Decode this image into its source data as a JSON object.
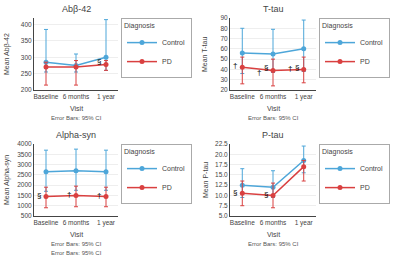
{
  "chart_data": [
    {
      "type": "line",
      "title": "Abβ-42",
      "xlabel": "Visit",
      "ylabel": "Mean Abβ-42",
      "categories": [
        "Baseline",
        "6 months",
        "1 year"
      ],
      "series": [
        {
          "name": "Control",
          "color": "#4da6d9",
          "marker": "circle",
          "values": [
            285,
            275,
            300
          ],
          "ci_low": [
            255,
            255,
            260
          ],
          "ci_high": [
            385,
            310,
            415
          ]
        },
        {
          "name": "PD",
          "color": "#d94040",
          "marker": "circle",
          "values": [
            270,
            270,
            278
          ],
          "ci_low": [
            215,
            215,
            260
          ],
          "ci_high": [
            285,
            290,
            290
          ]
        }
      ],
      "ylim": [
        200,
        420
      ],
      "yticks": [
        200,
        250,
        300,
        350,
        400
      ],
      "grid": true,
      "legend": "upper right",
      "legend_title": "Diagnosis",
      "annotations": [
        {
          "category": "1 year",
          "y": 288,
          "text": "§"
        }
      ],
      "footnotes": [
        "Error Bars: 95% CI"
      ]
    },
    {
      "type": "line",
      "title": "T-tau",
      "xlabel": "Visit",
      "ylabel": "Mean T-tau",
      "categories": [
        "Baseline",
        "6 months",
        "1 year"
      ],
      "series": [
        {
          "name": "Control",
          "color": "#4da6d9",
          "marker": "circle",
          "values": [
            56,
            55,
            60
          ],
          "ci_low": [
            36,
            37,
            38
          ],
          "ci_high": [
            80,
            79,
            88
          ]
        },
        {
          "name": "PD",
          "color": "#d94040",
          "marker": "circle",
          "values": [
            42,
            39,
            40
          ],
          "ci_low": [
            26,
            24,
            27
          ],
          "ci_high": [
            52,
            50,
            52
          ]
        }
      ],
      "ylim": [
        20,
        90
      ],
      "yticks": [
        20,
        30,
        40,
        50,
        60,
        70,
        80,
        90
      ],
      "grid": true,
      "legend": "upper right",
      "legend_title": "Diagnosis",
      "annotations": [
        {
          "category": "Baseline",
          "y": 44,
          "text": "†"
        },
        {
          "category": "6 months",
          "y": 42,
          "text": "§"
        },
        {
          "category": "6 months",
          "y": 37,
          "text": "†"
        },
        {
          "category": "1 year",
          "y": 42,
          "text": "§"
        },
        {
          "category": "1 year",
          "y": 41,
          "text": "†"
        }
      ],
      "footnotes": [
        "Error Bars: 95% CI"
      ]
    },
    {
      "type": "line",
      "title": "Alpha-syn",
      "xlabel": "Visit",
      "ylabel": "Mean Alpha-syn",
      "categories": [
        "Baseline",
        "6 months",
        "1 year"
      ],
      "series": [
        {
          "name": "Control",
          "color": "#4da6d9",
          "marker": "circle",
          "values": [
            2650,
            2700,
            2650
          ],
          "ci_low": [
            1700,
            1750,
            1750
          ],
          "ci_high": [
            3700,
            3750,
            3700
          ]
        },
        {
          "name": "PD",
          "color": "#d94040",
          "marker": "circle",
          "values": [
            1450,
            1500,
            1450
          ],
          "ci_low": [
            900,
            950,
            950
          ],
          "ci_high": [
            1900,
            1950,
            1900
          ]
        }
      ],
      "ylim": [
        500,
        4000
      ],
      "yticks": [
        500,
        1000,
        1500,
        2000,
        2500,
        3000,
        3500,
        4000
      ],
      "grid": true,
      "legend": "upper right",
      "legend_title": "Diagnosis",
      "annotations": [
        {
          "category": "Baseline",
          "y": 1500,
          "text": "§"
        },
        {
          "category": "6 months",
          "y": 1550,
          "text": "†"
        },
        {
          "category": "1 year",
          "y": 1500,
          "text": "†"
        }
      ],
      "footnotes": [
        "Error Bars: 95% CI",
        "Error Bars: 95% CI"
      ]
    },
    {
      "type": "line",
      "title": "P-tau",
      "xlabel": "Visit",
      "ylabel": "Mean P-tau",
      "categories": [
        "Baseline",
        "6 months",
        "1 year"
      ],
      "series": [
        {
          "name": "Control",
          "color": "#4da6d9",
          "marker": "circle",
          "values": [
            12.5,
            12.0,
            18.5
          ],
          "ci_low": [
            9.5,
            9.5,
            15.5
          ],
          "ci_high": [
            16.5,
            16.0,
            22.0
          ]
        },
        {
          "name": "PD",
          "color": "#d94040",
          "marker": "circle",
          "values": [
            10.5,
            10.0,
            17.0
          ],
          "ci_low": [
            7.5,
            7.0,
            13.5
          ],
          "ci_high": [
            13.5,
            13.0,
            18.5
          ]
        }
      ],
      "ylim": [
        5,
        22.5
      ],
      "yticks": [
        {
          "value": 5,
          "label": "5.0"
        },
        7.5,
        {
          "value": 10,
          "label": "10.0"
        },
        12.5,
        {
          "value": 15,
          "label": "15.0"
        },
        17.5,
        {
          "value": 20,
          "label": "20.0"
        },
        22.5
      ],
      "grid": true,
      "legend": "upper right",
      "legend_title": "Diagnosis",
      "annotations": [
        {
          "category": "Baseline",
          "y": 10.8,
          "text": "§"
        },
        {
          "category": "6 months",
          "y": 10.3,
          "text": "§"
        }
      ],
      "footnotes": [
        "Error Bars: 95% CI"
      ]
    }
  ]
}
